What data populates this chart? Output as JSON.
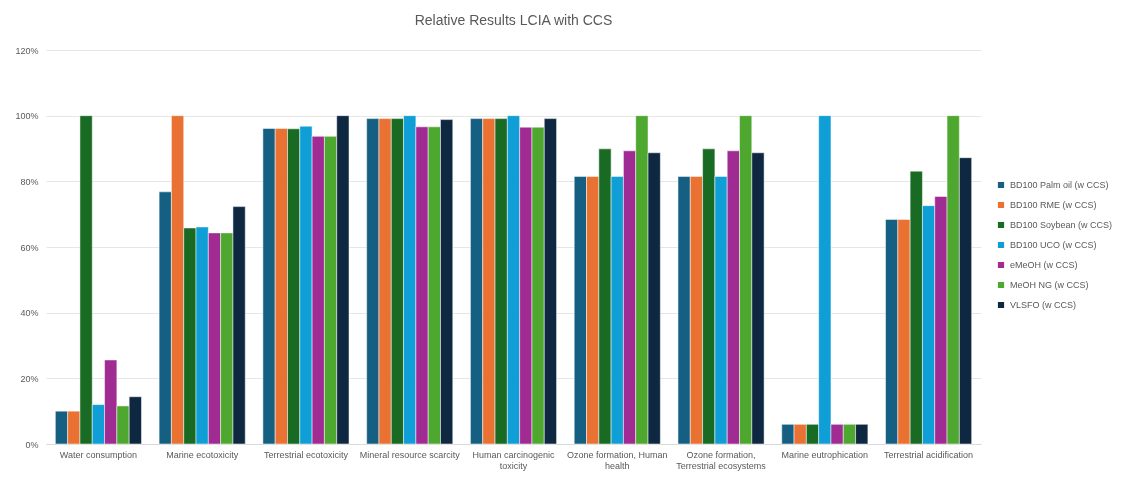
{
  "chart_data": {
    "type": "bar",
    "title": "Relative Results LCIA with CCS",
    "categories": [
      "Water consumption",
      "Marine ecotoxicity",
      "Terrestrial ecotoxicity",
      "Mineral resource scarcity",
      "Human carcinogenic toxicity",
      "Ozone formation, Human health",
      "Ozone formation, Terrestrial ecosystems",
      "Marine eutrophication",
      "Terrestrial acidification"
    ],
    "series": [
      {
        "name": "BD100 Palm oil (w CCS)",
        "color": "#156082",
        "values": [
          10,
          76.8,
          96.1,
          99.1,
          99.1,
          81.5,
          81.5,
          6,
          68.4
        ]
      },
      {
        "name": "BD100 RME (w CCS)",
        "color": "#e97132",
        "values": [
          10,
          100,
          96.1,
          99.1,
          99.1,
          81.5,
          81.5,
          6,
          68.4
        ]
      },
      {
        "name": "BD100 Soybean (w CCS)",
        "color": "#196b24",
        "values": [
          100,
          65.8,
          96,
          99.1,
          99.1,
          89.9,
          89.9,
          6,
          83.1
        ]
      },
      {
        "name": "BD100 UCO (w CCS)",
        "color": "#0f9ed5",
        "values": [
          12,
          66.1,
          96.8,
          100,
          100,
          81.5,
          81.5,
          100,
          72.6
        ]
      },
      {
        "name": "eMeOH (w CCS)",
        "color": "#a02b93",
        "values": [
          25.6,
          64.3,
          93.7,
          96.6,
          96.5,
          89.3,
          89.3,
          6,
          75.4
        ]
      },
      {
        "name": "MeOH NG (w CCS)",
        "color": "#4ea72e",
        "values": [
          11.6,
          64.3,
          93.7,
          96.6,
          96.5,
          100,
          100,
          6,
          100
        ]
      },
      {
        "name": "VLSFO (w CCS)",
        "color": "#0e2841",
        "values": [
          14.4,
          72.3,
          100,
          98.8,
          99.1,
          88.7,
          88.7,
          6,
          87.2
        ]
      }
    ],
    "ylim": [
      0,
      120
    ],
    "yticks": [
      {
        "value": 0,
        "label": "0%"
      },
      {
        "value": 20,
        "label": "20%"
      },
      {
        "value": 40,
        "label": "40%"
      },
      {
        "value": 60,
        "label": "60%"
      },
      {
        "value": 80,
        "label": "80%"
      },
      {
        "value": 100,
        "label": "100%"
      },
      {
        "value": 120,
        "label": "120%"
      }
    ],
    "grid": "y",
    "legend": "right"
  }
}
